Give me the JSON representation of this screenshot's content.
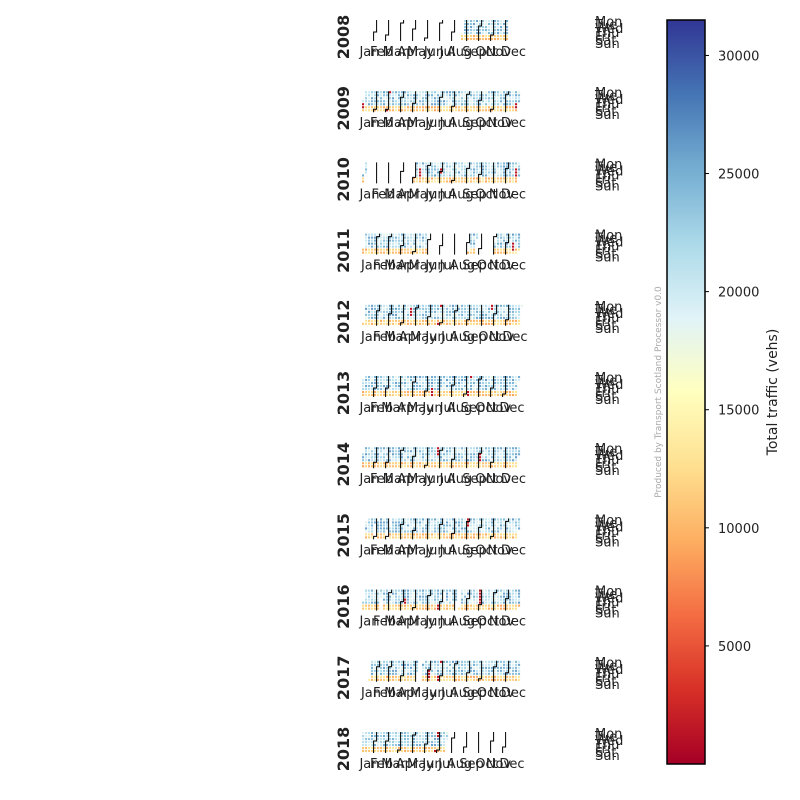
{
  "chart_data": {
    "type": "heatmap",
    "subtype": "calendar",
    "years": [
      "2008",
      "2009",
      "2010",
      "2011",
      "2012",
      "2013",
      "2014",
      "2015",
      "2016",
      "2017",
      "2018"
    ],
    "month_labels": [
      "Jan",
      "Feb",
      "Mar",
      "Apr",
      "May",
      "Jun",
      "Jul",
      "Aug",
      "Sep",
      "Oct",
      "Nov",
      "Dec"
    ],
    "day_labels": [
      "Mon",
      "Tue",
      "Wed",
      "Thu",
      "Fri",
      "Sat",
      "Sun"
    ],
    "coverage": [
      {
        "year": "2008",
        "missing": [
          [
            1,
            235
          ],
          [
            343,
            366
          ]
        ],
        "gaps": [
          [
            355,
            357
          ]
        ]
      },
      {
        "year": "2009",
        "missing": [],
        "gaps": [
          [
            2,
            3
          ],
          [
            60,
            61
          ],
          [
            359,
            360
          ]
        ]
      },
      {
        "year": "2010",
        "missing": [
          [
            8,
            120
          ]
        ],
        "gaps": [
          [
            132,
            134
          ],
          [
            181,
            182
          ],
          [
            356,
            358
          ]
        ]
      },
      {
        "year": "2011",
        "missing": [
          [
            150,
            246
          ],
          [
            264,
            306
          ]
        ],
        "gaps": [
          [
            240,
            242
          ],
          [
            349,
            351
          ]
        ]
      },
      {
        "year": "2012",
        "missing": [],
        "gaps": [
          [
            108,
            110
          ],
          [
            176,
            177
          ],
          [
            296,
            297
          ]
        ]
      },
      {
        "year": "2013",
        "missing": [],
        "gaps": [
          [
            165,
            167
          ],
          [
            250,
            252
          ]
        ]
      },
      {
        "year": "2014",
        "missing": [],
        "gaps": [
          [
            174,
            176
          ],
          [
            274,
            276
          ]
        ]
      },
      {
        "year": "2015",
        "missing": [
          [
            1,
            5
          ],
          [
            28,
            33
          ],
          [
            58,
            63
          ]
        ],
        "gaps": [
          [
            243,
            245
          ]
        ]
      },
      {
        "year": "2016",
        "missing": [
          [
            42,
            45
          ],
          [
            187,
            189
          ],
          [
            218,
            226
          ]
        ],
        "gaps": [
          [
            98,
            99
          ],
          [
            177,
            178
          ],
          [
            270,
            274
          ]
        ]
      },
      {
        "year": "2017",
        "missing": [
          [
            1,
            14
          ],
          [
            125,
            135
          ]
        ],
        "gaps": [
          [
            152,
            154
          ],
          [
            175,
            177
          ]
        ]
      },
      {
        "year": "2018",
        "missing": [
          [
            200,
            366
          ]
        ],
        "gaps": [
          [
            175,
            177
          ]
        ]
      }
    ],
    "colorbar": {
      "label": "Total traffic (vehs)",
      "min": 0,
      "max": 31500,
      "ticks": [
        5000,
        10000,
        15000,
        20000,
        25000,
        30000
      ],
      "colormap": [
        "#a50026",
        "#d73027",
        "#f46d43",
        "#fdae61",
        "#fee090",
        "#ffffbf",
        "#e0f3f8",
        "#abd9e9",
        "#74add1",
        "#4575b4",
        "#313695"
      ]
    },
    "weekday_value_range": [
      18000,
      26000
    ],
    "weekend_value_range": [
      9000,
      14000
    ],
    "outlier_value": 1500
  },
  "credit": "Produced by Transport Scotland Processor v0.0"
}
